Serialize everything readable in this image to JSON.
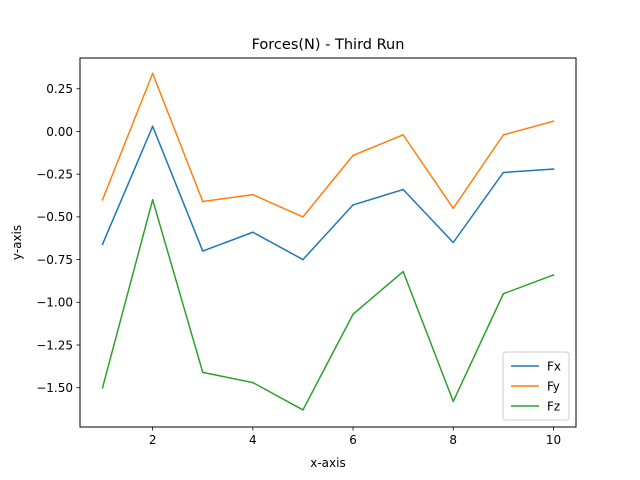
{
  "chart_data": {
    "type": "line",
    "title": "Forces(N) - Third Run",
    "xlabel": "x-axis",
    "ylabel": "y-axis",
    "xlim": [
      0.55,
      10.45
    ],
    "ylim": [
      -1.73,
      0.43
    ],
    "xticks": [
      2,
      4,
      6,
      8,
      10
    ],
    "xtick_labels": [
      "2",
      "4",
      "6",
      "8",
      "10"
    ],
    "yticks": [
      0.25,
      0.0,
      -0.25,
      -0.5,
      -0.75,
      -1.0,
      -1.25,
      -1.5
    ],
    "ytick_labels": [
      "0.25",
      "0.00",
      "−0.25",
      "−0.50",
      "−0.75",
      "−1.00",
      "−1.25",
      "−1.50"
    ],
    "x": [
      1,
      2,
      3,
      4,
      5,
      6,
      7,
      8,
      9,
      10
    ],
    "series": [
      {
        "name": "Fx",
        "color": "#1f77b4",
        "values": [
          -0.66,
          0.03,
          -0.7,
          -0.59,
          -0.75,
          -0.43,
          -0.34,
          -0.65,
          -0.24,
          -0.22
        ]
      },
      {
        "name": "Fy",
        "color": "#ff7f0e",
        "values": [
          -0.4,
          0.34,
          -0.41,
          -0.37,
          -0.5,
          -0.14,
          -0.02,
          -0.45,
          -0.02,
          0.06
        ]
      },
      {
        "name": "Fz",
        "color": "#2ca02c",
        "values": [
          -1.5,
          -0.4,
          -1.41,
          -1.47,
          -1.63,
          -1.07,
          -0.82,
          -1.58,
          -0.95,
          -0.84
        ]
      }
    ],
    "legend_position": "lower-right",
    "grid": false
  }
}
